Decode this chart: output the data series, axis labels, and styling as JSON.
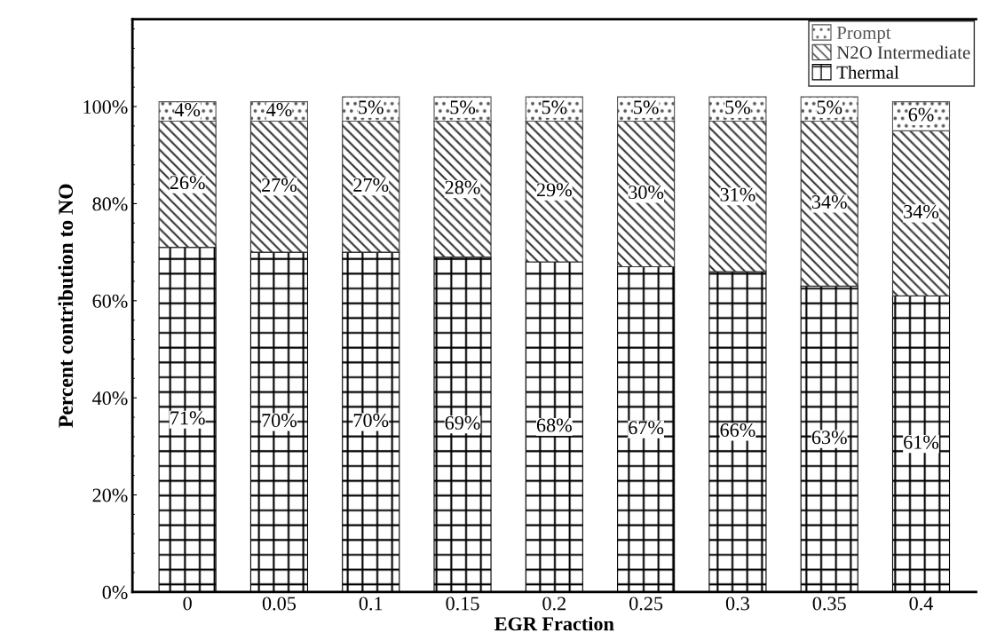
{
  "chart_data": {
    "type": "bar",
    "stacked": true,
    "xlabel": "EGR Fraction",
    "ylabel": "Percent contribution to NO",
    "categories": [
      "0",
      "0.05",
      "0.1",
      "0.15",
      "0.2",
      "0.25",
      "0.3",
      "0.35",
      "0.4"
    ],
    "series": [
      {
        "name": "Thermal",
        "color": "#000000",
        "values": [
          71,
          70,
          70,
          69,
          68,
          67,
          66,
          63,
          61
        ],
        "value_labels": [
          "71%",
          "70%",
          "70%",
          "69%",
          "68%",
          "67%",
          "66%",
          "63%",
          "61%"
        ]
      },
      {
        "name": "N2O Intermediate",
        "color": "#333333",
        "values": [
          26,
          27,
          27,
          28,
          29,
          30,
          31,
          34,
          34
        ],
        "value_labels": [
          "26%",
          "27%",
          "27%",
          "28%",
          "29%",
          "30%",
          "31%",
          "34%",
          "34%"
        ]
      },
      {
        "name": "Prompt",
        "color": "#555555",
        "values": [
          4,
          4,
          5,
          5,
          5,
          5,
          5,
          5,
          6
        ],
        "value_labels": [
          "4%",
          "4%",
          "5%",
          "5%",
          "5%",
          "5%",
          "5%",
          "5%",
          "6%"
        ]
      }
    ],
    "ylim": [
      0,
      118
    ],
    "yticks": [
      {
        "value": 0,
        "label": "0%"
      },
      {
        "value": 20,
        "label": "20%"
      },
      {
        "value": 40,
        "label": "40%"
      },
      {
        "value": 60,
        "label": "60%"
      },
      {
        "value": 80,
        "label": "80%"
      },
      {
        "value": 100,
        "label": "100%"
      }
    ],
    "grid": false,
    "legend": "top right"
  }
}
